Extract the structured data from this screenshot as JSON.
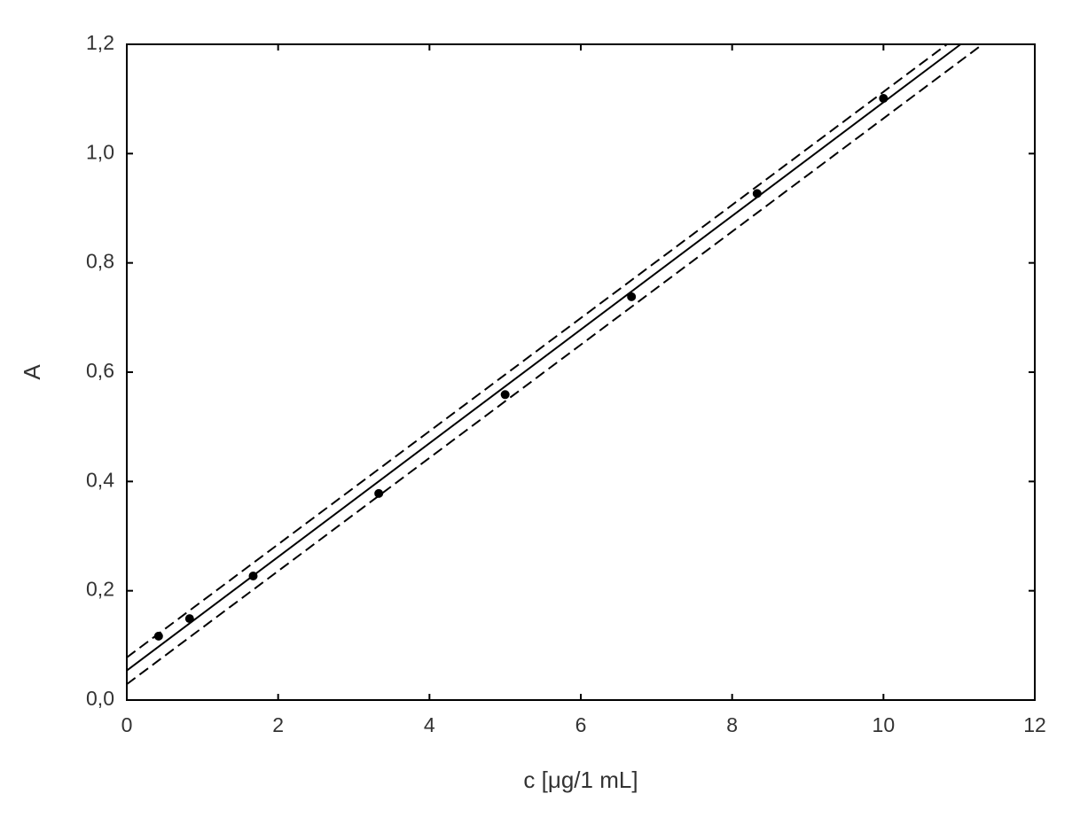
{
  "chart_data": {
    "type": "scatter",
    "xlabel": "c [μg/1 mL]",
    "ylabel": "A",
    "xlim": [
      0,
      12
    ],
    "xticks": [
      0,
      2,
      4,
      6,
      8,
      10,
      12
    ],
    "ylim": [
      0,
      1.2
    ],
    "yticks": [
      {
        "value": 0,
        "label": "0,0"
      },
      {
        "value": 0.2,
        "label": "0,2"
      },
      {
        "value": 0.4,
        "label": "0,4"
      },
      {
        "value": 0.6,
        "label": "0,6"
      },
      {
        "value": 0.8,
        "label": "0,8"
      },
      {
        "value": 1.0,
        "label": "1,0"
      },
      {
        "value": 1.2,
        "label": "1,2"
      }
    ],
    "series": [
      {
        "style": "markers",
        "color": "#000000",
        "x": [
          0.42,
          0.83,
          1.67,
          3.33,
          5.0,
          6.67,
          8.33,
          10.0
        ],
        "values": [
          0.117,
          0.149,
          0.227,
          0.378,
          0.559,
          0.738,
          0.927,
          1.101
        ]
      },
      {
        "style": "solid",
        "color": "#000000",
        "x": [
          0,
          11.02
        ],
        "values": [
          0.054,
          1.2
        ]
      },
      {
        "style": "dashed",
        "color": "#000000",
        "x": [
          0,
          10.84
        ],
        "values": [
          0.078,
          1.2
        ]
      },
      {
        "style": "dashed",
        "color": "#000000",
        "x": [
          0,
          11.31
        ],
        "values": [
          0.029,
          1.2
        ]
      }
    ]
  }
}
